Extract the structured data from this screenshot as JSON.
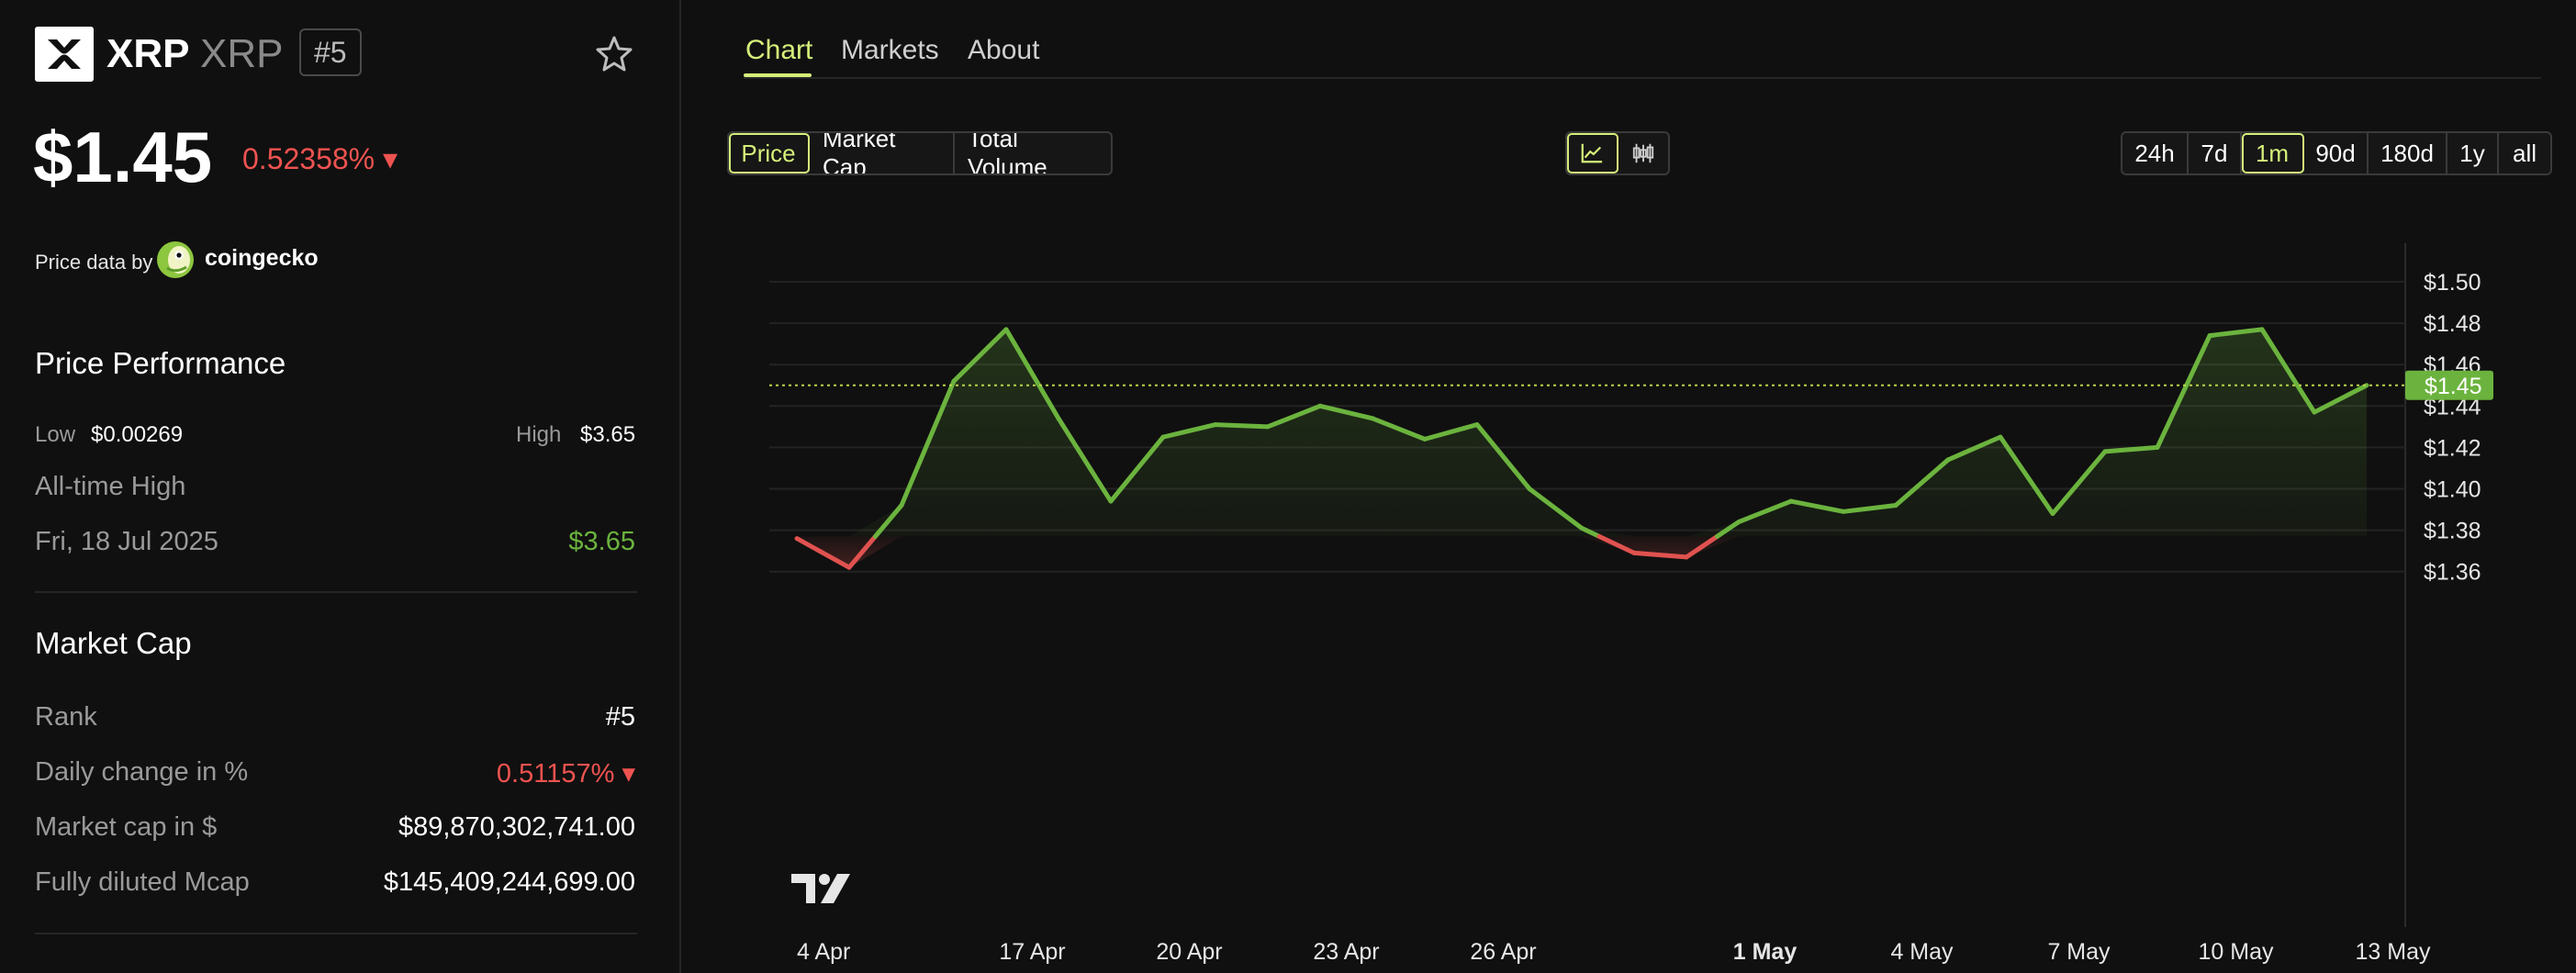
{
  "coin": {
    "name": "XRP",
    "symbol": "XRP",
    "rank_badge": "#5",
    "price": "$1.45",
    "change": "0.52358% ▾",
    "price_data_by": "Price data by",
    "provider": "coingecko"
  },
  "performance": {
    "title": "Price Performance",
    "low_label": "Low",
    "low_value": "$0.00269",
    "high_label": "High",
    "high_value": "$3.65",
    "ath_label": "All-time High",
    "ath_date": "Fri, 18 Jul 2025",
    "ath_value": "$3.65"
  },
  "market_cap": {
    "title": "Market Cap",
    "rows": [
      {
        "label": "Rank",
        "value": "#5"
      },
      {
        "label": "Daily change in %",
        "value": "0.51157% ▾"
      },
      {
        "label": "Market cap in $",
        "value": "$89,870,302,741.00"
      },
      {
        "label": "Fully diluted Mcap",
        "value": "$145,409,244,699.00"
      }
    ]
  },
  "tabs": [
    "Chart",
    "Markets",
    "About"
  ],
  "metric_buttons": [
    "Price",
    "Market Cap",
    "Total Volume"
  ],
  "range_buttons": [
    "24h",
    "7d",
    "1m",
    "90d",
    "180d",
    "1y",
    "all"
  ],
  "chart_icons": [
    "line-chart-icon",
    "candlestick-icon"
  ],
  "colors": {
    "accent": "#d5ef7a",
    "up": "#6bb33e",
    "down": "#e0524f",
    "background": "#101010"
  },
  "chart_data": {
    "type": "line",
    "x_labels": [
      "4 Apr",
      "17 Apr",
      "20 Apr",
      "23 Apr",
      "26 Apr",
      "1 May",
      "4 May",
      "7 May",
      "10 May",
      "13 May"
    ],
    "y_labels": [
      "$1.50",
      "$1.48",
      "$1.46",
      "$1.44",
      "$1.42",
      "$1.40",
      "$1.38",
      "$1.36"
    ],
    "ylim": [
      1.35,
      1.51
    ],
    "ticks_y": [
      1.5,
      1.48,
      1.46,
      1.44,
      1.42,
      1.4,
      1.38,
      1.36
    ],
    "baseline": 1.377,
    "current_price": 1.45,
    "current_price_label": "$1.45",
    "x_tick_index": [
      0,
      4.5,
      7.5,
      10.5,
      13.5,
      18.5,
      21.5,
      24.5,
      27.5,
      30.5
    ],
    "series": [
      {
        "values": [
          1.376,
          1.362,
          1.392,
          1.452,
          1.477,
          1.434,
          1.394,
          1.425,
          1.431,
          1.43,
          1.44,
          1.434,
          1.424,
          1.431,
          1.4,
          1.381,
          1.369,
          1.367,
          1.384,
          1.394,
          1.389,
          1.392,
          1.414,
          1.425,
          1.388,
          1.418,
          1.42,
          1.474,
          1.477,
          1.437,
          1.45
        ]
      }
    ],
    "grid": true,
    "watermark": "TV"
  }
}
